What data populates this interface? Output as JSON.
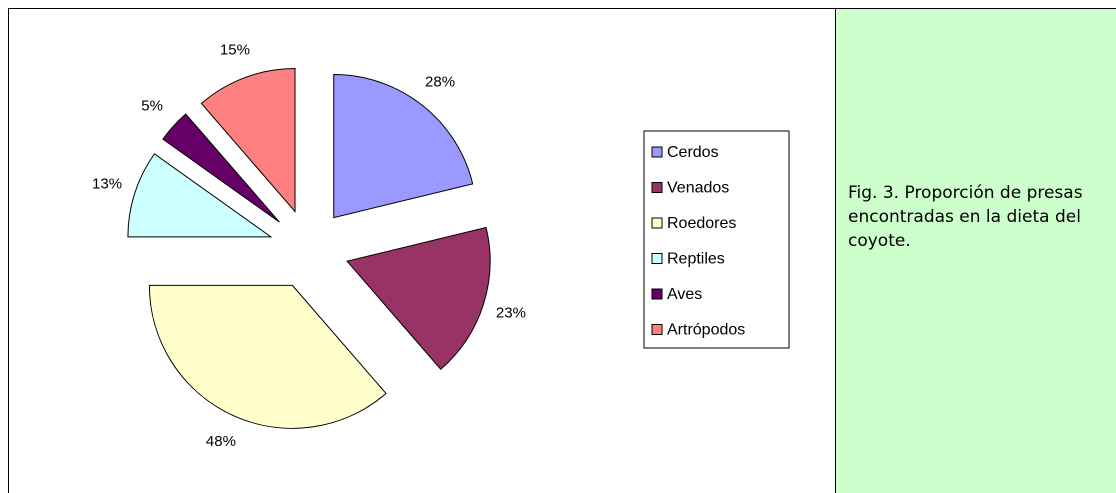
{
  "chart_data": {
    "type": "pie",
    "categories": [
      "Cerdos",
      "Venados",
      "Roedores",
      "Reptiles",
      "Aves",
      "Artrópodos"
    ],
    "values": [
      28,
      23,
      48,
      13,
      5,
      15
    ],
    "value_labels": [
      "28%",
      "23%",
      "48%",
      "13%",
      "5%",
      "15%"
    ],
    "colors": [
      "#9999ff",
      "#993366",
      "#ffffcc",
      "#ccffff",
      "#660066",
      "#ff8080"
    ],
    "legend": "right"
  },
  "caption": "Fig. 3. Proporción de presas encontradas en la dieta del coyote."
}
